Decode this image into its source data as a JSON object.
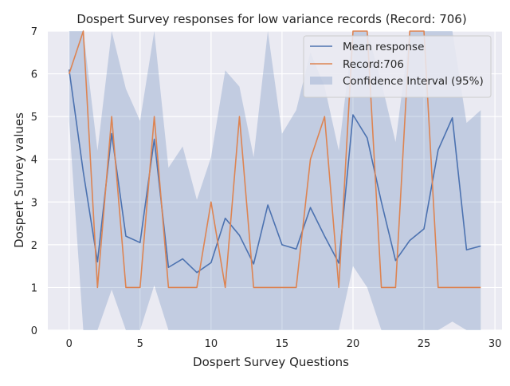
{
  "chart_data": {
    "type": "line",
    "title": "Dospert Survey responses for low variance records (Record: 706)",
    "xlabel": "Dospert Survey Questions",
    "ylabel": "Dospert Survey values",
    "xlim": [
      -1.5,
      30.5
    ],
    "ylim": [
      0,
      7
    ],
    "xticks": [
      0,
      5,
      10,
      15,
      20,
      25,
      30
    ],
    "yticks": [
      0,
      1,
      2,
      3,
      4,
      5,
      6,
      7
    ],
    "grid": true,
    "legend_position": "top-right",
    "x": [
      0,
      1,
      2,
      3,
      4,
      5,
      6,
      7,
      8,
      9,
      10,
      11,
      12,
      13,
      14,
      15,
      16,
      17,
      18,
      19,
      20,
      21,
      22,
      23,
      24,
      25,
      26,
      27,
      28,
      29
    ],
    "series": [
      {
        "name": "Mean response",
        "color": "#4c72b0",
        "values": [
          6.1,
          3.7,
          1.6,
          4.6,
          2.2,
          2.05,
          4.47,
          1.47,
          1.67,
          1.35,
          1.58,
          2.62,
          2.22,
          1.55,
          2.93,
          2.0,
          1.9,
          2.87,
          2.2,
          1.57,
          5.04,
          4.5,
          3.0,
          1.63,
          2.1,
          2.37,
          4.22,
          4.97,
          1.88,
          1.97
        ]
      },
      {
        "name": "Record:706",
        "color": "#dd8452",
        "values": [
          6,
          7,
          1,
          5,
          1,
          1,
          5,
          1,
          1,
          1,
          3,
          1,
          5,
          1,
          1,
          1,
          1,
          4,
          5,
          1,
          7,
          7,
          1,
          1,
          7,
          7,
          1,
          1,
          1,
          1
        ]
      }
    ],
    "confidence_interval": {
      "name": "Confidence Interval (95%)",
      "color": "#4c72b0",
      "lower": [
        4.9,
        0,
        0,
        0.95,
        0,
        0,
        1.05,
        0,
        0,
        0,
        0,
        0,
        0,
        0,
        0,
        0,
        0,
        0,
        0,
        0,
        1.5,
        1.0,
        0,
        0,
        0,
        0,
        0,
        0.2,
        0,
        0
      ],
      "upper": [
        7,
        7,
        4.2,
        7,
        5.65,
        4.9,
        7,
        3.8,
        4.3,
        3.05,
        4.05,
        6.08,
        5.7,
        4.05,
        7,
        4.6,
        5.15,
        6.5,
        5.7,
        4.2,
        7,
        7,
        5.8,
        4.4,
        7,
        7,
        7,
        7,
        4.85,
        5.15
      ]
    }
  }
}
